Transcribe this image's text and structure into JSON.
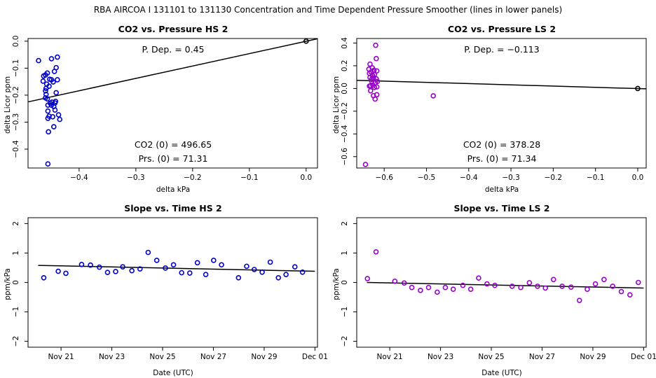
{
  "page_title": "RBA   AIRCOA I   131101 to 131130   Concentration and Time Dependent Pressure Smoother (lines in lower panels)",
  "chart_data": [
    {
      "id": "p1",
      "type": "scatter",
      "title": "CO2 vs. Pressure HS 2",
      "xlabel": "delta kPa",
      "ylabel": "delta Licor ppm",
      "xlim": [
        -0.49,
        0.02
      ],
      "ylim": [
        -0.47,
        0.01
      ],
      "xticks": [
        -0.4,
        -0.3,
        -0.2,
        -0.1,
        0.0
      ],
      "xtick_labels": [
        "−0.4",
        "−0.3",
        "−0.2",
        "−0.1",
        "0.0"
      ],
      "yticks": [
        0.0,
        -0.1,
        -0.2,
        -0.3,
        -0.4
      ],
      "ytick_labels": [
        "0.0",
        "−0.1",
        "−0.2",
        "−0.3",
        "−0.4"
      ],
      "point_color": "#0000cc",
      "points": [
        [
          -0.4715,
          -0.072
        ],
        [
          -0.4625,
          -0.129
        ],
        [
          -0.4635,
          -0.148
        ],
        [
          -0.4592,
          -0.125
        ],
        [
          -0.4582,
          -0.175
        ],
        [
          -0.4571,
          -0.159
        ],
        [
          -0.456,
          -0.118
        ],
        [
          -0.4592,
          -0.184
        ],
        [
          -0.455,
          -0.237
        ],
        [
          -0.456,
          -0.214
        ],
        [
          -0.455,
          -0.259
        ],
        [
          -0.455,
          -0.286
        ],
        [
          -0.4529,
          -0.167
        ],
        [
          -0.4519,
          -0.141
        ],
        [
          -0.4508,
          -0.23
        ],
        [
          -0.4487,
          -0.065
        ],
        [
          -0.4487,
          -0.143
        ],
        [
          -0.4487,
          -0.237
        ],
        [
          -0.4477,
          -0.226
        ],
        [
          -0.4466,
          -0.28
        ],
        [
          -0.4456,
          -0.151
        ],
        [
          -0.4446,
          -0.242
        ],
        [
          -0.4435,
          -0.112
        ],
        [
          -0.4425,
          -0.255
        ],
        [
          -0.4414,
          -0.223
        ],
        [
          -0.4404,
          -0.191
        ],
        [
          -0.4383,
          -0.059
        ],
        [
          -0.4404,
          -0.098
        ],
        [
          -0.4383,
          -0.143
        ],
        [
          -0.4362,
          -0.273
        ],
        [
          -0.4341,
          -0.29
        ],
        [
          -0.4446,
          -0.317
        ],
        [
          -0.454,
          -0.336
        ],
        [
          -0.455,
          -0.455
        ],
        [
          -0.4529,
          -0.278
        ],
        [
          -0.4582,
          -0.197
        ],
        [
          -0.4592,
          -0.21
        ],
        [
          -0.4425,
          -0.229
        ]
      ],
      "ref_point": [
        0.0,
        0.0
      ],
      "fit_line": [
        [
          -0.49,
          -0.225
        ],
        [
          0.02,
          0.009
        ]
      ],
      "ann_dep": "P. Dep. =  0.45",
      "ann_co2": "CO2 (0) =  496.65",
      "ann_prs": "Prs. (0) =  71.31"
    },
    {
      "id": "p2",
      "type": "scatter",
      "title": "CO2 vs. Pressure LS 2",
      "xlabel": "delta kPa",
      "ylabel": "delta Licor ppm",
      "xlim": [
        -0.665,
        0.02
      ],
      "ylim": [
        -0.7,
        0.44
      ],
      "xticks": [
        -0.6,
        -0.5,
        -0.4,
        -0.3,
        -0.2,
        -0.1,
        0.0
      ],
      "xtick_labels": [
        "−0.6",
        "−0.5",
        "−0.4",
        "−0.3",
        "−0.2",
        "−0.1",
        "0.0"
      ],
      "yticks": [
        0.4,
        0.2,
        0.0,
        -0.2,
        -0.4,
        -0.6
      ],
      "ytick_labels": [
        "0.4",
        "0.2",
        "0.0",
        "−0.2",
        "−0.4",
        "−0.6"
      ],
      "point_color": "#9900cc",
      "points": [
        [
          -0.6443,
          -0.669
        ],
        [
          -0.6362,
          0.17
        ],
        [
          -0.6349,
          0.133
        ],
        [
          -0.6336,
          0.215
        ],
        [
          -0.6336,
          0.097
        ],
        [
          -0.6322,
          0.024
        ],
        [
          -0.6322,
          -0.02
        ],
        [
          -0.6309,
          0.145
        ],
        [
          -0.6296,
          0.063
        ],
        [
          -0.6282,
          0.182
        ],
        [
          -0.6282,
          0.116
        ],
        [
          -0.6269,
          0.11
        ],
        [
          -0.6269,
          0.03
        ],
        [
          -0.6255,
          -0.063
        ],
        [
          -0.6255,
          0.092
        ],
        [
          -0.6242,
          0.16
        ],
        [
          -0.6229,
          0.121
        ],
        [
          -0.6215,
          0.049
        ],
        [
          -0.6215,
          -0.093
        ],
        [
          -0.6202,
          0.38
        ],
        [
          -0.6188,
          0.263
        ],
        [
          -0.6188,
          0.085
        ],
        [
          -0.6175,
          0.014
        ],
        [
          -0.6175,
          -0.055
        ],
        [
          -0.6175,
          0.155
        ],
        [
          -0.6161,
          0.062
        ],
        [
          -0.4839,
          -0.065
        ],
        [
          -0.6229,
          0.01
        ],
        [
          -0.6296,
          0.081
        ],
        [
          -0.6349,
          0.021
        ]
      ],
      "ref_point": [
        0.0,
        0.0
      ],
      "fit_line": [
        [
          -0.665,
          0.072
        ],
        [
          0.02,
          -0.003
        ]
      ],
      "ann_dep": "P. Dep. =  −0.113",
      "ann_co2": "CO2 (0) =  378.28",
      "ann_prs": "Prs. (0) =  71.34"
    },
    {
      "id": "p3",
      "type": "scatter",
      "title": "Slope vs. Time HS 2",
      "xlabel": "Date (UTC)",
      "ylabel": "ppm/kPa",
      "xlim": [
        19.7,
        31.1
      ],
      "ylim": [
        -2.2,
        2.2
      ],
      "xticks": [
        21,
        23,
        25,
        27,
        29,
        31
      ],
      "xtick_labels": [
        "Nov 21",
        "Nov 23",
        "Nov 25",
        "Nov 27",
        "Nov 29",
        "Dec 01"
      ],
      "yticks": [
        2,
        1,
        0,
        -1,
        -2
      ],
      "ytick_labels": [
        "2",
        "1",
        "0",
        "−1",
        "−2"
      ],
      "point_color": "#0000cc",
      "points": [
        [
          20.32,
          0.16
        ],
        [
          20.89,
          0.38
        ],
        [
          21.19,
          0.31
        ],
        [
          21.81,
          0.61
        ],
        [
          22.16,
          0.59
        ],
        [
          22.51,
          0.52
        ],
        [
          22.83,
          0.34
        ],
        [
          23.15,
          0.37
        ],
        [
          23.43,
          0.53
        ],
        [
          23.79,
          0.4
        ],
        [
          24.11,
          0.46
        ],
        [
          24.43,
          1.02
        ],
        [
          24.77,
          0.75
        ],
        [
          25.11,
          0.49
        ],
        [
          25.43,
          0.6
        ],
        [
          25.75,
          0.33
        ],
        [
          26.07,
          0.32
        ],
        [
          26.37,
          0.67
        ],
        [
          26.7,
          0.27
        ],
        [
          27.01,
          0.75
        ],
        [
          27.32,
          0.6
        ],
        [
          27.99,
          0.16
        ],
        [
          28.31,
          0.55
        ],
        [
          28.61,
          0.44
        ],
        [
          28.92,
          0.35
        ],
        [
          29.24,
          0.69
        ],
        [
          29.56,
          0.16
        ],
        [
          29.86,
          0.27
        ],
        [
          30.21,
          0.53
        ],
        [
          30.51,
          0.35
        ]
      ],
      "fit_line": [
        [
          20.1,
          0.58
        ],
        [
          31.0,
          0.38
        ]
      ]
    },
    {
      "id": "p4",
      "type": "scatter",
      "title": "Slope vs. Time LS 2",
      "xlabel": "Date (UTC)",
      "ylabel": "ppm/kPa",
      "xlim": [
        19.7,
        31.1
      ],
      "ylim": [
        -2.2,
        2.2
      ],
      "xticks": [
        21,
        23,
        25,
        27,
        29,
        31
      ],
      "xtick_labels": [
        "Nov 21",
        "Nov 23",
        "Nov 25",
        "Nov 27",
        "Nov 29",
        "Dec 01"
      ],
      "yticks": [
        2,
        1,
        0,
        -1,
        -2
      ],
      "ytick_labels": [
        "2",
        "1",
        "0",
        "−1",
        "−2"
      ],
      "point_color": "#9900cc",
      "points": [
        [
          20.12,
          0.13
        ],
        [
          20.46,
          1.04
        ],
        [
          21.2,
          0.04
        ],
        [
          21.57,
          -0.02
        ],
        [
          21.87,
          -0.17
        ],
        [
          22.21,
          -0.27
        ],
        [
          22.53,
          -0.17
        ],
        [
          22.87,
          -0.33
        ],
        [
          23.19,
          -0.17
        ],
        [
          23.5,
          -0.23
        ],
        [
          23.88,
          -0.1
        ],
        [
          24.19,
          -0.23
        ],
        [
          24.5,
          0.15
        ],
        [
          24.83,
          -0.05
        ],
        [
          25.14,
          -0.1
        ],
        [
          25.82,
          -0.13
        ],
        [
          26.16,
          -0.17
        ],
        [
          26.5,
          -0.01
        ],
        [
          26.82,
          -0.13
        ],
        [
          27.13,
          -0.19
        ],
        [
          27.45,
          0.1
        ],
        [
          27.79,
          -0.13
        ],
        [
          28.14,
          -0.16
        ],
        [
          28.47,
          -0.61
        ],
        [
          28.78,
          -0.23
        ],
        [
          29.1,
          -0.05
        ],
        [
          29.44,
          0.1
        ],
        [
          29.78,
          -0.13
        ],
        [
          30.12,
          -0.31
        ],
        [
          30.46,
          -0.42
        ],
        [
          30.79,
          0.0
        ]
      ],
      "fit_line": [
        [
          20.1,
          0.0
        ],
        [
          31.0,
          -0.19
        ]
      ]
    }
  ]
}
